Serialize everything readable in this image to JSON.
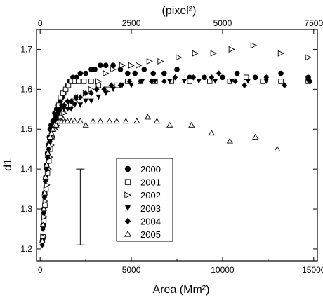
{
  "chart_data": {
    "type": "scatter",
    "xlabel": "Area (Mm²)",
    "ylabel": "d1",
    "top_axis_label": "(pixel²)",
    "xlim": [
      -200,
      15200
    ],
    "ylim": [
      1.17,
      1.75
    ],
    "xticks": [
      0,
      5000,
      10000,
      15000
    ],
    "xtick_labels": [
      "0",
      "5000",
      "10000",
      "15000"
    ],
    "yticks": [
      1.2,
      1.3,
      1.4,
      1.5,
      1.6,
      1.7
    ],
    "ytick_labels": [
      "1.2",
      "1.3",
      "1.4",
      "1.5",
      "1.6",
      "1.7"
    ],
    "top_ticks": [
      0,
      2500,
      5000,
      7500
    ],
    "top_tick_labels": [
      "0",
      "2500",
      "5000",
      "7500"
    ],
    "top_axis_scale": 0.5,
    "grid": false,
    "legend_position": "lower-center",
    "error_bar": {
      "x": 2200,
      "low": 1.21,
      "high": 1.4
    },
    "series": [
      {
        "name": "2000",
        "marker": "circle-filled",
        "points": [
          [
            120,
            1.22
          ],
          [
            160,
            1.26
          ],
          [
            200,
            1.3
          ],
          [
            250,
            1.34
          ],
          [
            300,
            1.38
          ],
          [
            350,
            1.41
          ],
          [
            400,
            1.44
          ],
          [
            450,
            1.46
          ],
          [
            500,
            1.48
          ],
          [
            550,
            1.5
          ],
          [
            600,
            1.51
          ],
          [
            700,
            1.52
          ],
          [
            800,
            1.54
          ],
          [
            900,
            1.55
          ],
          [
            1000,
            1.56
          ],
          [
            1100,
            1.57
          ],
          [
            1200,
            1.58
          ],
          [
            1300,
            1.59
          ],
          [
            1400,
            1.6
          ],
          [
            1500,
            1.61
          ],
          [
            1600,
            1.62
          ],
          [
            1800,
            1.63
          ],
          [
            2000,
            1.63
          ],
          [
            2200,
            1.64
          ],
          [
            2500,
            1.64
          ],
          [
            2800,
            1.65
          ],
          [
            3000,
            1.65
          ],
          [
            3300,
            1.66
          ],
          [
            3600,
            1.66
          ],
          [
            4000,
            1.66
          ],
          [
            4400,
            1.65
          ],
          [
            4800,
            1.64
          ],
          [
            5200,
            1.64
          ],
          [
            5700,
            1.65
          ],
          [
            6200,
            1.64
          ],
          [
            6800,
            1.64
          ],
          [
            7500,
            1.65
          ],
          [
            8200,
            1.63
          ],
          [
            9000,
            1.63
          ],
          [
            10000,
            1.63
          ],
          [
            10800,
            1.64
          ],
          [
            11800,
            1.63
          ],
          [
            13200,
            1.64
          ],
          [
            14700,
            1.63
          ]
        ]
      },
      {
        "name": "2001",
        "marker": "square-open",
        "points": [
          [
            150,
            1.23
          ],
          [
            200,
            1.27
          ],
          [
            260,
            1.31
          ],
          [
            320,
            1.35
          ],
          [
            400,
            1.39
          ],
          [
            480,
            1.42
          ],
          [
            560,
            1.45
          ],
          [
            640,
            1.48
          ],
          [
            720,
            1.5
          ],
          [
            820,
            1.52
          ],
          [
            920,
            1.54
          ],
          [
            1020,
            1.56
          ],
          [
            1120,
            1.58
          ],
          [
            1250,
            1.59
          ],
          [
            1400,
            1.6
          ],
          [
            1550,
            1.61
          ],
          [
            1700,
            1.62
          ],
          [
            1900,
            1.62
          ],
          [
            2100,
            1.62
          ],
          [
            2400,
            1.62
          ],
          [
            2800,
            1.62
          ],
          [
            3200,
            1.61
          ],
          [
            3700,
            1.6
          ],
          [
            4200,
            1.61
          ],
          [
            4800,
            1.62
          ],
          [
            5500,
            1.62
          ],
          [
            6300,
            1.62
          ],
          [
            7200,
            1.62
          ],
          [
            8200,
            1.62
          ],
          [
            9300,
            1.62
          ],
          [
            10400,
            1.62
          ],
          [
            11300,
            1.63
          ],
          [
            12200,
            1.62
          ],
          [
            13200,
            1.62
          ],
          [
            14700,
            1.62
          ]
        ]
      },
      {
        "name": "2002",
        "marker": "triangle-right-open",
        "points": [
          [
            180,
            1.23
          ],
          [
            240,
            1.28
          ],
          [
            300,
            1.32
          ],
          [
            380,
            1.36
          ],
          [
            460,
            1.4
          ],
          [
            540,
            1.43
          ],
          [
            620,
            1.46
          ],
          [
            700,
            1.48
          ],
          [
            800,
            1.5
          ],
          [
            900,
            1.51
          ],
          [
            1000,
            1.52
          ],
          [
            1150,
            1.53
          ],
          [
            1300,
            1.54
          ],
          [
            1500,
            1.55
          ],
          [
            1700,
            1.56
          ],
          [
            1900,
            1.57
          ],
          [
            2200,
            1.58
          ],
          [
            2500,
            1.59
          ],
          [
            2800,
            1.6
          ],
          [
            3200,
            1.62
          ],
          [
            3600,
            1.64
          ],
          [
            4000,
            1.65
          ],
          [
            4500,
            1.66
          ],
          [
            5000,
            1.66
          ],
          [
            5400,
            1.66
          ],
          [
            6000,
            1.67
          ],
          [
            6600,
            1.67
          ],
          [
            7600,
            1.68
          ],
          [
            8500,
            1.69
          ],
          [
            9500,
            1.69
          ],
          [
            10500,
            1.7
          ],
          [
            11700,
            1.71
          ],
          [
            13200,
            1.69
          ],
          [
            14700,
            1.68
          ]
        ]
      },
      {
        "name": "2003",
        "marker": "triangle-down-filled",
        "points": [
          [
            130,
            1.22
          ],
          [
            170,
            1.25
          ],
          [
            210,
            1.29
          ],
          [
            260,
            1.33
          ],
          [
            310,
            1.37
          ],
          [
            370,
            1.4
          ],
          [
            430,
            1.43
          ],
          [
            500,
            1.46
          ],
          [
            570,
            1.48
          ],
          [
            650,
            1.5
          ],
          [
            730,
            1.51
          ],
          [
            820,
            1.52
          ],
          [
            920,
            1.53
          ],
          [
            1030,
            1.54
          ],
          [
            1150,
            1.55
          ],
          [
            1300,
            1.55
          ],
          [
            1500,
            1.55
          ],
          [
            1700,
            1.55
          ],
          [
            1900,
            1.56
          ],
          [
            2200,
            1.56
          ],
          [
            2500,
            1.57
          ],
          [
            2800,
            1.57
          ],
          [
            3200,
            1.58
          ],
          [
            3600,
            1.59
          ],
          [
            4000,
            1.6
          ],
          [
            4500,
            1.61
          ],
          [
            5000,
            1.61
          ],
          [
            5600,
            1.62
          ],
          [
            6300,
            1.62
          ],
          [
            7100,
            1.62
          ],
          [
            7900,
            1.62
          ],
          [
            8700,
            1.62
          ],
          [
            9600,
            1.62
          ],
          [
            10500,
            1.62
          ],
          [
            11400,
            1.62
          ],
          [
            12400,
            1.62
          ],
          [
            14700,
            1.62
          ]
        ]
      },
      {
        "name": "2004",
        "marker": "diamond-filled",
        "points": [
          [
            110,
            1.21
          ],
          [
            150,
            1.25
          ],
          [
            190,
            1.29
          ],
          [
            240,
            1.33
          ],
          [
            290,
            1.37
          ],
          [
            340,
            1.4
          ],
          [
            400,
            1.43
          ],
          [
            460,
            1.45
          ],
          [
            530,
            1.47
          ],
          [
            600,
            1.49
          ],
          [
            680,
            1.51
          ],
          [
            760,
            1.52
          ],
          [
            850,
            1.53
          ],
          [
            950,
            1.54
          ],
          [
            1060,
            1.55
          ],
          [
            1180,
            1.56
          ],
          [
            1320,
            1.56
          ],
          [
            1500,
            1.57
          ],
          [
            1700,
            1.57
          ],
          [
            1950,
            1.58
          ],
          [
            2200,
            1.58
          ],
          [
            2500,
            1.59
          ],
          [
            2800,
            1.59
          ],
          [
            3100,
            1.6
          ],
          [
            3500,
            1.6
          ],
          [
            3900,
            1.61
          ],
          [
            4400,
            1.61
          ],
          [
            4900,
            1.62
          ],
          [
            5500,
            1.62
          ],
          [
            6100,
            1.62
          ],
          [
            6800,
            1.62
          ],
          [
            7400,
            1.63
          ],
          [
            8400,
            1.63
          ],
          [
            9400,
            1.63
          ],
          [
            9800,
            1.64
          ],
          [
            10700,
            1.62
          ],
          [
            11200,
            1.61
          ],
          [
            12400,
            1.63
          ],
          [
            13400,
            1.61
          ],
          [
            14800,
            1.62
          ]
        ]
      },
      {
        "name": "2005",
        "marker": "triangle-up-open",
        "points": [
          [
            120,
            1.22
          ],
          [
            160,
            1.26
          ],
          [
            200,
            1.3
          ],
          [
            250,
            1.34
          ],
          [
            300,
            1.38
          ],
          [
            360,
            1.41
          ],
          [
            420,
            1.44
          ],
          [
            480,
            1.46
          ],
          [
            550,
            1.48
          ],
          [
            620,
            1.49
          ],
          [
            700,
            1.5
          ],
          [
            790,
            1.51
          ],
          [
            880,
            1.51
          ],
          [
            980,
            1.52
          ],
          [
            1080,
            1.52
          ],
          [
            1200,
            1.52
          ],
          [
            1350,
            1.52
          ],
          [
            1500,
            1.52
          ],
          [
            1700,
            1.52
          ],
          [
            1900,
            1.52
          ],
          [
            2200,
            1.52
          ],
          [
            2500,
            1.51
          ],
          [
            2900,
            1.52
          ],
          [
            3300,
            1.52
          ],
          [
            3800,
            1.52
          ],
          [
            4200,
            1.52
          ],
          [
            4700,
            1.52
          ],
          [
            5300,
            1.52
          ],
          [
            5900,
            1.53
          ],
          [
            6400,
            1.52
          ],
          [
            7100,
            1.51
          ],
          [
            8300,
            1.51
          ],
          [
            9400,
            1.49
          ],
          [
            10400,
            1.47
          ],
          [
            11800,
            1.48
          ],
          [
            13000,
            1.45
          ]
        ]
      }
    ]
  }
}
